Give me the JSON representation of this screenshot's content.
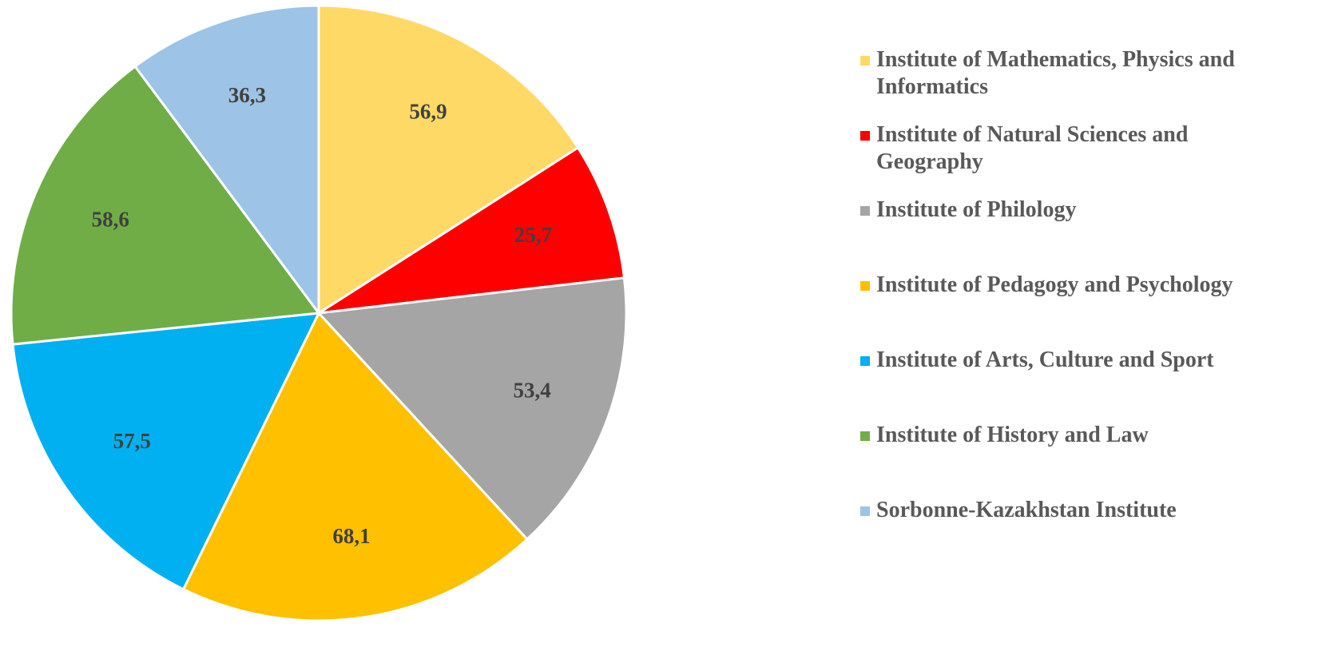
{
  "chart_data": {
    "type": "pie",
    "categories": [
      "Institute of Mathematics, Physics and Informatics",
      "Institute of Natural Sciences and Geography",
      "Institute of Philology",
      "Institute of Pedagogy and Psychology",
      "Institute of Arts, Culture and Sport",
      "Institute of History and Law",
      "Sorbonne-Kazakhstan Institute"
    ],
    "values": [
      56.9,
      25.7,
      53.4,
      68.1,
      57.5,
      58.6,
      36.3
    ],
    "value_labels": [
      "56,9",
      "25,7",
      "53,4",
      "68,1",
      "57,5",
      "58,6",
      "36,3"
    ],
    "colors": [
      "#ffd966",
      "#ff0000",
      "#a5a5a5",
      "#ffc000",
      "#00b0f0",
      "#70ad47",
      "#9dc3e6"
    ],
    "legend": "right"
  }
}
